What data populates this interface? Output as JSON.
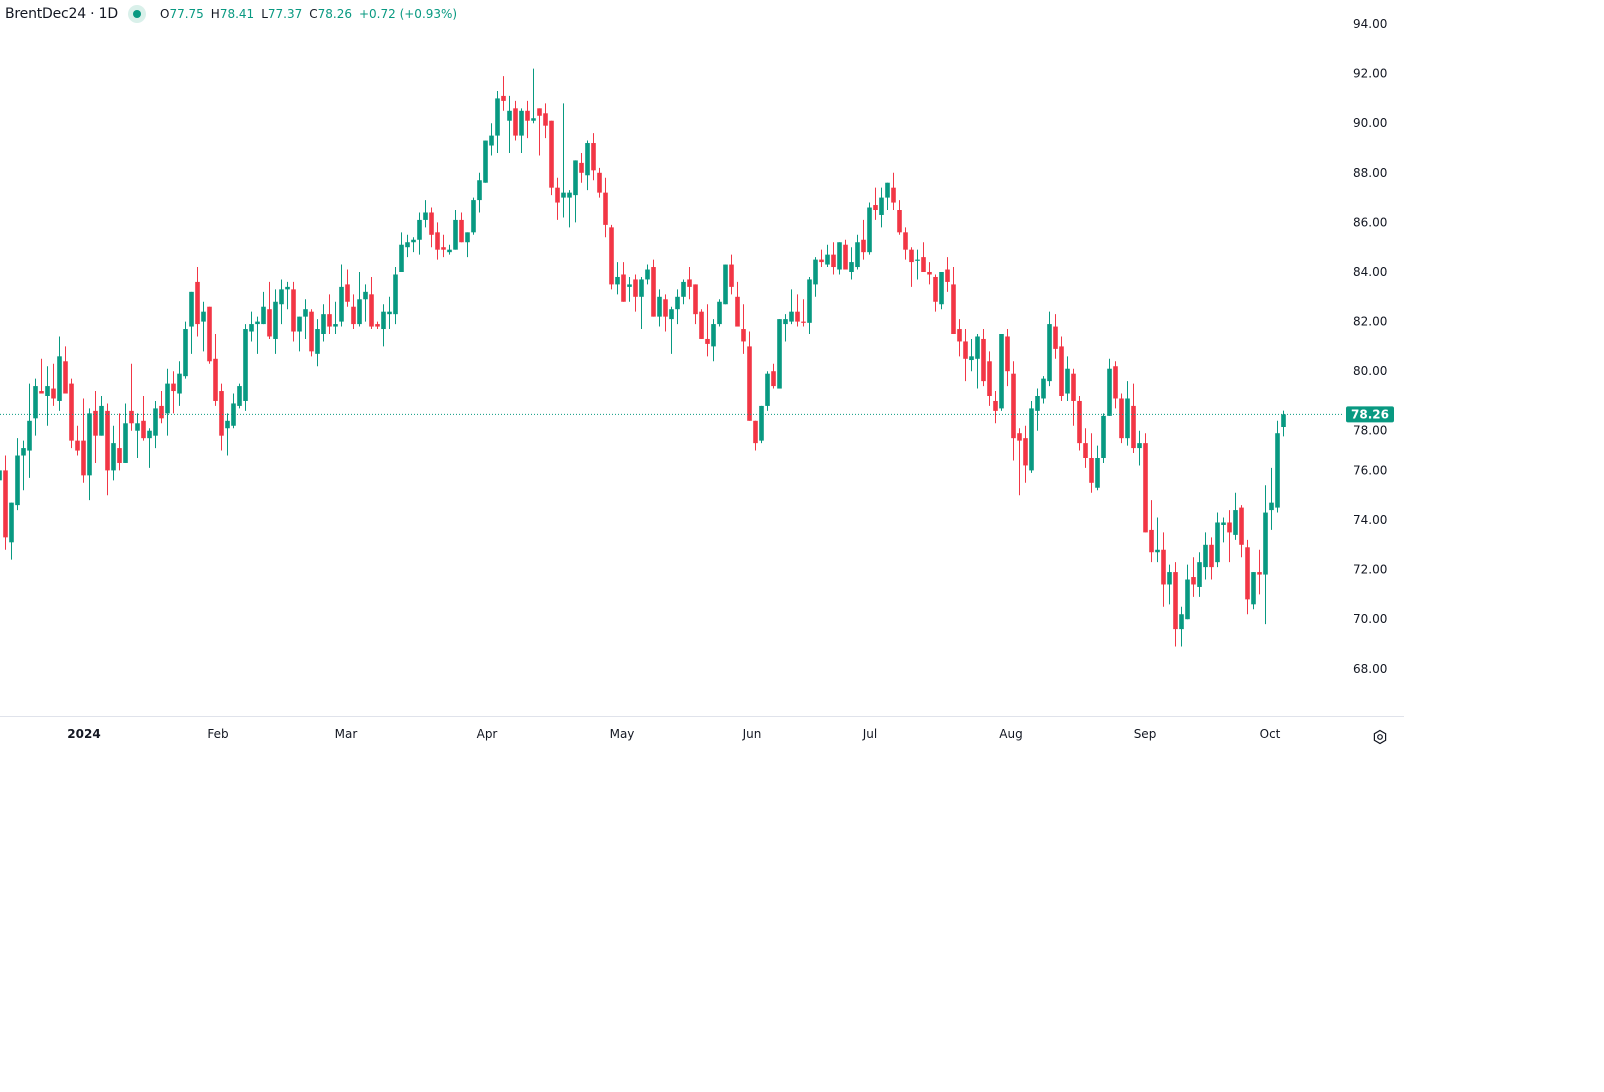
{
  "legend": {
    "symbol": "BrentDec24 · 1D",
    "open_label": "O",
    "open": "77.75",
    "high_label": "H",
    "high": "78.41",
    "low_label": "L",
    "low": "77.37",
    "close_label": "C",
    "close": "78.26",
    "change": "+0.72 (+0.93%)"
  },
  "colors": {
    "up": "#089981",
    "down": "#F23645",
    "text": "#131722",
    "grid_line": "#e0e3eb"
  },
  "icons": {
    "status": "market-status-dot-icon",
    "settings": "settings-gear-icon"
  },
  "chart_data": {
    "type": "candlestick",
    "interval": "1D",
    "ylim": [
      67,
      94.5
    ],
    "y_ticks": [
      "94.00",
      "92.00",
      "90.00",
      "88.00",
      "86.00",
      "84.00",
      "82.00",
      "80.00",
      "78.00",
      "76.00",
      "74.00",
      "72.00",
      "70.00",
      "68.00"
    ],
    "x_ticks": [
      "2024",
      "Feb",
      "Mar",
      "Apr",
      "May",
      "Jun",
      "Jul",
      "Aug",
      "Sep",
      "Oct"
    ],
    "last_price": "78.26",
    "grid": false,
    "candle_fields": [
      "open",
      "high",
      "low",
      "close"
    ],
    "candles": [
      [
        75.6,
        76.1,
        75.5,
        76.0
      ],
      [
        76.0,
        76.6,
        72.8,
        73.3
      ],
      [
        73.1,
        74.7,
        72.4,
        74.7
      ],
      [
        74.6,
        77.3,
        74.4,
        76.6
      ],
      [
        76.6,
        77.2,
        75.2,
        76.9
      ],
      [
        76.8,
        79.5,
        75.7,
        78.0
      ],
      [
        78.1,
        79.7,
        77.4,
        79.4
      ],
      [
        79.2,
        80.5,
        79.1,
        79.1
      ],
      [
        79.0,
        80.2,
        77.8,
        79.4
      ],
      [
        79.3,
        80.3,
        78.6,
        78.9
      ],
      [
        78.8,
        81.4,
        78.4,
        80.6
      ],
      [
        80.4,
        81.0,
        79.1,
        79.1
      ],
      [
        79.5,
        79.7,
        76.9,
        77.2
      ],
      [
        77.2,
        77.8,
        76.6,
        76.8
      ],
      [
        77.2,
        78.9,
        75.5,
        75.8
      ],
      [
        75.8,
        78.5,
        74.8,
        78.3
      ],
      [
        78.4,
        79.2,
        76.3,
        77.4
      ],
      [
        77.4,
        79.0,
        77.4,
        78.6
      ],
      [
        78.4,
        78.7,
        75.0,
        76.0
      ],
      [
        76.0,
        77.8,
        75.6,
        77.1
      ],
      [
        76.9,
        78.3,
        76.0,
        76.3
      ],
      [
        76.3,
        78.7,
        76.3,
        77.9
      ],
      [
        78.4,
        80.3,
        77.6,
        77.9
      ],
      [
        77.6,
        78.3,
        76.5,
        77.9
      ],
      [
        78.0,
        79.0,
        77.2,
        77.3
      ],
      [
        77.3,
        77.7,
        76.1,
        77.6
      ],
      [
        77.4,
        78.8,
        76.9,
        78.5
      ],
      [
        78.6,
        79.2,
        77.9,
        78.1
      ],
      [
        78.3,
        80.1,
        77.4,
        79.5
      ],
      [
        79.5,
        80.0,
        78.3,
        79.2
      ],
      [
        79.1,
        80.4,
        78.6,
        79.9
      ],
      [
        79.8,
        82.0,
        79.7,
        81.7
      ],
      [
        81.8,
        83.2,
        80.7,
        83.2
      ],
      [
        83.6,
        84.2,
        81.4,
        81.9
      ],
      [
        82.0,
        82.8,
        80.8,
        82.4
      ],
      [
        82.6,
        82.6,
        80.3,
        80.4
      ],
      [
        80.5,
        81.5,
        78.6,
        78.8
      ],
      [
        79.2,
        79.5,
        76.8,
        77.4
      ],
      [
        77.7,
        78.3,
        76.6,
        78.0
      ],
      [
        77.8,
        79.1,
        77.7,
        78.7
      ],
      [
        78.6,
        79.5,
        78.5,
        79.4
      ],
      [
        78.8,
        81.9,
        78.4,
        81.7
      ],
      [
        81.6,
        82.4,
        81.2,
        81.9
      ],
      [
        81.9,
        82.2,
        80.7,
        82.0
      ],
      [
        81.9,
        83.2,
        81.9,
        82.6
      ],
      [
        82.5,
        83.6,
        81.3,
        81.4
      ],
      [
        81.3,
        83.3,
        80.7,
        82.8
      ],
      [
        82.7,
        83.7,
        81.9,
        83.3
      ],
      [
        83.3,
        83.6,
        82.5,
        83.4
      ],
      [
        83.3,
        83.6,
        81.2,
        81.6
      ],
      [
        81.6,
        82.2,
        80.8,
        82.2
      ],
      [
        82.2,
        82.9,
        81.3,
        82.5
      ],
      [
        82.4,
        82.5,
        80.6,
        80.8
      ],
      [
        80.7,
        82.1,
        80.2,
        81.7
      ],
      [
        81.5,
        82.7,
        81.2,
        82.3
      ],
      [
        82.3,
        83.1,
        81.5,
        81.8
      ],
      [
        81.8,
        82.8,
        81.5,
        81.9
      ],
      [
        82.0,
        84.3,
        81.8,
        83.4
      ],
      [
        83.5,
        84.1,
        82.6,
        82.8
      ],
      [
        82.6,
        83.1,
        81.7,
        81.9
      ],
      [
        81.9,
        84.0,
        81.8,
        82.9
      ],
      [
        82.9,
        83.5,
        82.0,
        83.2
      ],
      [
        83.1,
        83.8,
        81.7,
        81.8
      ],
      [
        81.9,
        82.0,
        81.7,
        81.8
      ],
      [
        81.7,
        82.7,
        81.0,
        82.4
      ],
      [
        82.3,
        83.0,
        81.7,
        82.4
      ],
      [
        82.3,
        84.2,
        81.9,
        83.9
      ],
      [
        84.0,
        85.6,
        84.0,
        85.1
      ],
      [
        85.0,
        85.5,
        84.6,
        85.2
      ],
      [
        85.2,
        85.4,
        84.8,
        85.3
      ],
      [
        85.3,
        86.4,
        84.7,
        86.1
      ],
      [
        86.1,
        86.9,
        85.8,
        86.4
      ],
      [
        86.4,
        86.6,
        85.0,
        85.5
      ],
      [
        85.6,
        86.0,
        84.5,
        84.9
      ],
      [
        85.0,
        85.5,
        84.6,
        84.9
      ],
      [
        84.8,
        85.1,
        84.7,
        84.9
      ],
      [
        84.9,
        86.5,
        84.9,
        86.1
      ],
      [
        86.1,
        86.4,
        85.2,
        85.2
      ],
      [
        85.2,
        85.6,
        84.6,
        85.6
      ],
      [
        85.6,
        87.0,
        85.5,
        86.9
      ],
      [
        86.9,
        88.0,
        86.4,
        87.7
      ],
      [
        87.6,
        89.3,
        87.6,
        89.3
      ],
      [
        89.1,
        90.0,
        88.7,
        89.5
      ],
      [
        89.5,
        91.3,
        88.8,
        91.0
      ],
      [
        91.1,
        91.9,
        90.5,
        90.9
      ],
      [
        90.1,
        91.1,
        88.8,
        90.5
      ],
      [
        90.6,
        90.9,
        89.3,
        89.5
      ],
      [
        89.5,
        90.6,
        88.8,
        90.5
      ],
      [
        90.5,
        90.9,
        89.4,
        90.1
      ],
      [
        90.1,
        92.2,
        90.0,
        90.2
      ],
      [
        90.6,
        90.6,
        88.7,
        90.3
      ],
      [
        90.4,
        90.8,
        89.4,
        89.9
      ],
      [
        90.1,
        90.1,
        87.1,
        87.4
      ],
      [
        87.4,
        87.8,
        86.1,
        86.8
      ],
      [
        87.0,
        90.8,
        86.2,
        87.2
      ],
      [
        87.0,
        87.3,
        85.8,
        87.2
      ],
      [
        87.1,
        88.5,
        86.0,
        88.5
      ],
      [
        88.4,
        88.8,
        87.6,
        88.0
      ],
      [
        87.9,
        89.3,
        87.3,
        89.2
      ],
      [
        89.2,
        89.6,
        87.7,
        88.1
      ],
      [
        88.0,
        88.2,
        87.0,
        87.2
      ],
      [
        87.2,
        87.8,
        85.4,
        85.9
      ],
      [
        85.8,
        85.9,
        83.3,
        83.5
      ],
      [
        83.5,
        84.4,
        83.1,
        83.8
      ],
      [
        83.9,
        84.4,
        82.8,
        82.8
      ],
      [
        83.4,
        83.8,
        82.8,
        83.5
      ],
      [
        83.7,
        83.9,
        82.4,
        83.0
      ],
      [
        83.0,
        83.8,
        81.7,
        83.7
      ],
      [
        83.7,
        84.3,
        83.5,
        84.1
      ],
      [
        84.2,
        84.5,
        82.2,
        82.2
      ],
      [
        82.2,
        83.3,
        81.8,
        83.0
      ],
      [
        82.9,
        83.1,
        81.6,
        82.2
      ],
      [
        82.1,
        82.6,
        80.7,
        82.5
      ],
      [
        82.5,
        83.3,
        81.9,
        83.0
      ],
      [
        83.0,
        83.7,
        82.7,
        83.6
      ],
      [
        83.7,
        84.2,
        82.9,
        83.4
      ],
      [
        83.5,
        83.5,
        81.9,
        82.3
      ],
      [
        82.4,
        82.5,
        81.3,
        81.3
      ],
      [
        81.3,
        82.7,
        80.6,
        81.1
      ],
      [
        81.0,
        82.1,
        80.4,
        81.9
      ],
      [
        81.9,
        82.9,
        81.8,
        82.8
      ],
      [
        82.7,
        84.3,
        82.7,
        84.3
      ],
      [
        84.3,
        84.7,
        83.1,
        83.4
      ],
      [
        83.0,
        83.6,
        81.8,
        81.8
      ],
      [
        81.7,
        82.7,
        80.7,
        81.2
      ],
      [
        81.0,
        81.6,
        78.0,
        78.0
      ],
      [
        78.0,
        78.0,
        76.8,
        77.1
      ],
      [
        77.2,
        78.6,
        77.1,
        78.6
      ],
      [
        78.6,
        80.0,
        78.4,
        79.9
      ],
      [
        80.0,
        80.3,
        79.3,
        79.4
      ],
      [
        79.3,
        82.1,
        79.3,
        82.1
      ],
      [
        81.9,
        82.3,
        81.2,
        82.1
      ],
      [
        82.0,
        83.3,
        81.9,
        82.4
      ],
      [
        82.4,
        83.1,
        81.8,
        82.0
      ],
      [
        82.0,
        82.9,
        81.8,
        81.95
      ],
      [
        81.95,
        83.8,
        81.5,
        83.7
      ],
      [
        83.5,
        84.6,
        83.0,
        84.5
      ],
      [
        84.5,
        84.9,
        84.2,
        84.4
      ],
      [
        84.3,
        85.1,
        84.2,
        84.7
      ],
      [
        84.7,
        85.2,
        83.9,
        84.2
      ],
      [
        84.1,
        85.2,
        83.9,
        85.2
      ],
      [
        85.1,
        85.3,
        84.1,
        84.1
      ],
      [
        84.0,
        85.0,
        83.7,
        84.4
      ],
      [
        84.2,
        85.5,
        84.1,
        85.2
      ],
      [
        85.3,
        86.1,
        84.5,
        84.8
      ],
      [
        84.8,
        86.8,
        84.7,
        86.6
      ],
      [
        86.7,
        87.4,
        86.1,
        86.5
      ],
      [
        86.3,
        87.4,
        85.8,
        87.0
      ],
      [
        87.0,
        87.6,
        86.5,
        87.6
      ],
      [
        87.4,
        88.0,
        86.5,
        86.8
      ],
      [
        86.5,
        86.9,
        85.5,
        85.6
      ],
      [
        85.6,
        85.8,
        84.5,
        84.9
      ],
      [
        84.9,
        85.0,
        83.4,
        84.4
      ],
      [
        84.45,
        84.9,
        83.7,
        84.5
      ],
      [
        84.6,
        85.2,
        84.0,
        84.0
      ],
      [
        84.0,
        84.4,
        83.5,
        83.9
      ],
      [
        83.8,
        83.9,
        82.4,
        82.8
      ],
      [
        82.7,
        84.0,
        82.5,
        84.0
      ],
      [
        84.1,
        84.6,
        83.2,
        83.6
      ],
      [
        83.5,
        84.2,
        81.5,
        81.5
      ],
      [
        81.7,
        82.1,
        80.6,
        81.2
      ],
      [
        81.2,
        81.7,
        79.6,
        80.5
      ],
      [
        80.45,
        81.3,
        80.0,
        80.6
      ],
      [
        80.5,
        81.5,
        79.3,
        81.4
      ],
      [
        81.3,
        81.7,
        79.4,
        79.6
      ],
      [
        80.4,
        80.8,
        78.6,
        79.0
      ],
      [
        78.8,
        79.2,
        77.9,
        78.4
      ],
      [
        78.5,
        81.5,
        78.4,
        81.5
      ],
      [
        81.4,
        81.7,
        79.4,
        80.0
      ],
      [
        79.9,
        80.4,
        76.4,
        77.3
      ],
      [
        77.5,
        77.7,
        75.0,
        77.2
      ],
      [
        77.3,
        77.8,
        75.5,
        76.2
      ],
      [
        76.0,
        78.8,
        75.9,
        78.5
      ],
      [
        78.4,
        79.3,
        77.6,
        79.0
      ],
      [
        78.9,
        79.8,
        78.7,
        79.7
      ],
      [
        79.6,
        82.4,
        79.4,
        81.9
      ],
      [
        81.8,
        82.3,
        80.5,
        80.9
      ],
      [
        81.0,
        81.4,
        78.8,
        79.0
      ],
      [
        79.1,
        80.6,
        78.8,
        80.1
      ],
      [
        79.9,
        80.1,
        77.8,
        78.8
      ],
      [
        78.8,
        79.0,
        76.8,
        77.1
      ],
      [
        77.1,
        77.7,
        76.1,
        76.5
      ],
      [
        76.5,
        77.5,
        75.1,
        75.5
      ],
      [
        75.3,
        77.0,
        75.2,
        76.5
      ],
      [
        76.5,
        78.3,
        76.3,
        78.2
      ],
      [
        78.2,
        80.5,
        78.2,
        80.1
      ],
      [
        80.2,
        80.4,
        78.5,
        78.9
      ],
      [
        78.9,
        79.1,
        77.1,
        77.3
      ],
      [
        77.3,
        79.6,
        77.0,
        78.9
      ],
      [
        78.6,
        79.5,
        76.7,
        76.9
      ],
      [
        76.9,
        77.6,
        76.2,
        77.1
      ],
      [
        77.1,
        77.5,
        73.5,
        73.5
      ],
      [
        73.6,
        74.8,
        72.3,
        72.7
      ],
      [
        72.7,
        74.1,
        72.3,
        72.8
      ],
      [
        72.8,
        73.5,
        70.5,
        71.4
      ],
      [
        71.4,
        72.2,
        70.6,
        71.9
      ],
      [
        71.9,
        72.3,
        68.9,
        69.6
      ],
      [
        69.6,
        70.5,
        68.9,
        70.2
      ],
      [
        70.0,
        72.2,
        70.0,
        71.6
      ],
      [
        71.7,
        72.5,
        70.9,
        71.4
      ],
      [
        71.3,
        72.7,
        70.9,
        72.3
      ],
      [
        72.1,
        73.5,
        71.6,
        73.0
      ],
      [
        73.0,
        73.3,
        71.6,
        72.1
      ],
      [
        72.3,
        74.3,
        72.1,
        73.9
      ],
      [
        73.8,
        74.1,
        73.1,
        73.9
      ],
      [
        73.9,
        74.4,
        72.3,
        73.5
      ],
      [
        73.4,
        75.1,
        73.2,
        74.4
      ],
      [
        74.5,
        74.6,
        72.5,
        73.0
      ],
      [
        72.9,
        73.2,
        70.2,
        70.8
      ],
      [
        70.6,
        71.9,
        70.4,
        71.9
      ],
      [
        71.9,
        72.8,
        71.0,
        71.8
      ],
      [
        71.8,
        75.4,
        69.8,
        74.3
      ],
      [
        74.4,
        76.1,
        73.6,
        74.7
      ],
      [
        74.5,
        78.0,
        74.3,
        77.5
      ],
      [
        77.75,
        78.41,
        77.37,
        78.26
      ]
    ]
  }
}
